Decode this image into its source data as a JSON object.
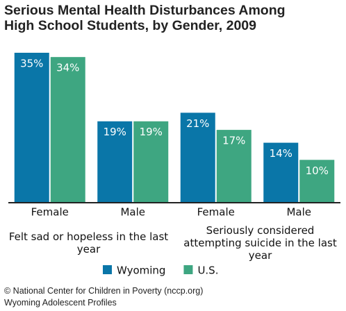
{
  "chart_data": {
    "type": "bar",
    "title": "Serious Mental Health Disturbances Among High School Students, by Gender, 2009",
    "categories": [
      "Female",
      "Male",
      "Female",
      "Male"
    ],
    "groups": [
      "Felt sad or hopeless in the last year",
      "Seriously considered attempting suicide in the last year"
    ],
    "series": [
      {
        "name": "Wyoming",
        "color": "#0a76a8",
        "values": [
          35,
          19,
          21,
          14
        ],
        "value_labels": [
          "35%",
          "19%",
          "21%",
          "14%"
        ]
      },
      {
        "name": "U.S.",
        "color": "#3ea681",
        "values": [
          34,
          19,
          17,
          10
        ],
        "value_labels": [
          "34%",
          "19%",
          "17%",
          "10%"
        ]
      }
    ],
    "ylim": [
      0,
      35
    ],
    "source": [
      "© National Center for Children in Poverty (nccp.org)",
      "Wyoming Adolescent Profiles"
    ]
  }
}
